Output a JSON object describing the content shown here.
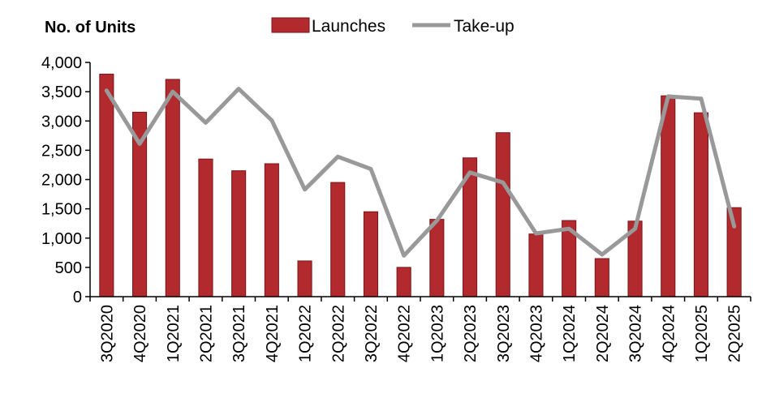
{
  "chart_data": {
    "type": "bar",
    "ylabel": "No. of Units",
    "categories": [
      "3Q2020",
      "4Q2020",
      "1Q2021",
      "2Q2021",
      "3Q2021",
      "4Q2021",
      "1Q2022",
      "2Q2022",
      "3Q2022",
      "4Q2022",
      "1Q2023",
      "2Q2023",
      "3Q2023",
      "4Q2023",
      "1Q2024",
      "2Q2024",
      "3Q2024",
      "4Q2024",
      "1Q2025",
      "2Q2025"
    ],
    "series": [
      {
        "name": "Launches",
        "kind": "bar",
        "color": "#b22a2e",
        "values": [
          3800,
          3150,
          3710,
          2350,
          2150,
          2270,
          610,
          1950,
          1450,
          500,
          1320,
          2370,
          2800,
          1070,
          1300,
          650,
          1290,
          3430,
          3140,
          1520
        ]
      },
      {
        "name": "Take-up",
        "kind": "line",
        "color": "#999999",
        "values": [
          3520,
          2610,
          3500,
          2970,
          3550,
          3010,
          1830,
          2390,
          2180,
          700,
          1300,
          2120,
          1950,
          1080,
          1160,
          720,
          1160,
          3420,
          3380,
          1200
        ]
      }
    ],
    "ylim": [
      0,
      4000
    ],
    "yticks": [
      0,
      500,
      1000,
      1500,
      2000,
      2500,
      3000,
      3500,
      4000
    ],
    "ytick_labels": [
      "0",
      "500",
      "1,000",
      "1,500",
      "2,000",
      "2,500",
      "3,000",
      "3,500",
      "4,000"
    ],
    "grid": false,
    "legend_position": "top-center"
  }
}
